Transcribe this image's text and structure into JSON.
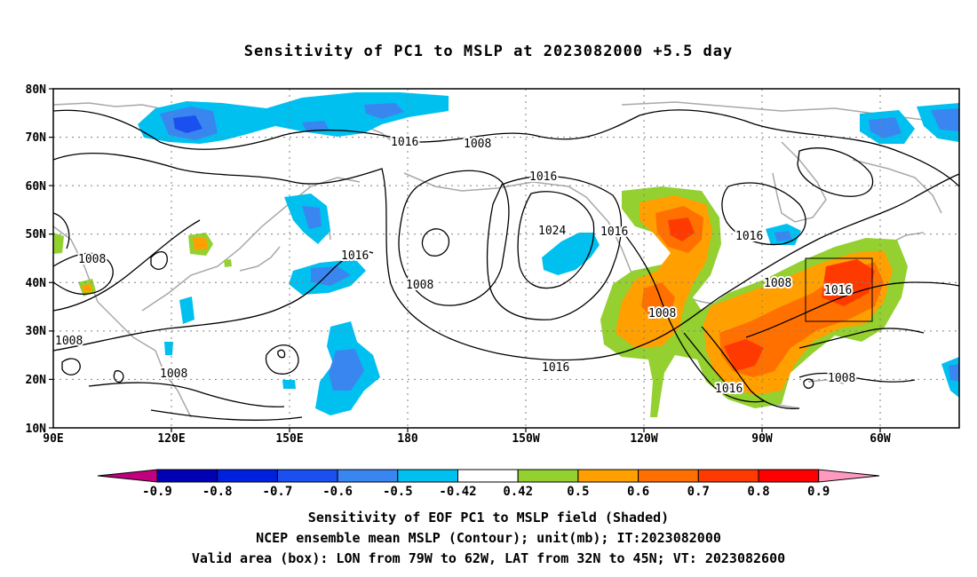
{
  "title": "Sensitivity of PC1 to MSLP at 2023082000 +5.5 day",
  "lat_labels": [
    "80N",
    "70N",
    "60N",
    "50N",
    "40N",
    "30N",
    "20N",
    "10N"
  ],
  "lon_labels": [
    "90E",
    "120E",
    "150E",
    "180",
    "150W",
    "120W",
    "90W",
    "60W"
  ],
  "contour_labels": [
    "1016",
    "1008",
    "1016",
    "1024",
    "1016",
    "1016",
    "1008",
    "1016",
    "1008",
    "1016",
    "1008",
    "1008",
    "1008",
    "1016",
    "1008",
    "1016",
    "1008"
  ],
  "colorbar": {
    "ticks": [
      "-0.9",
      "-0.8",
      "-0.7",
      "-0.6",
      "-0.5",
      "-0.42",
      "0.42",
      "0.5",
      "0.6",
      "0.7",
      "0.8",
      "0.9"
    ],
    "colors": [
      "#c0007f",
      "#0000b4",
      "#0020e0",
      "#1a4ff0",
      "#3a86f0",
      "#00c0f0",
      "#ffffff",
      "#94d030",
      "#ffa000",
      "#ff7000",
      "#ff3a00",
      "#ff0000",
      "#ff99c0"
    ]
  },
  "captions": [
    "Sensitivity of EOF PC1 to MSLP field (Shaded)",
    "NCEP ensemble mean MSLP (Contour); unit(mb); IT:2023082000",
    "Valid area (box): LON from 79W to 62W, LAT from 32N to 45N; VT: 2023082600"
  ]
}
